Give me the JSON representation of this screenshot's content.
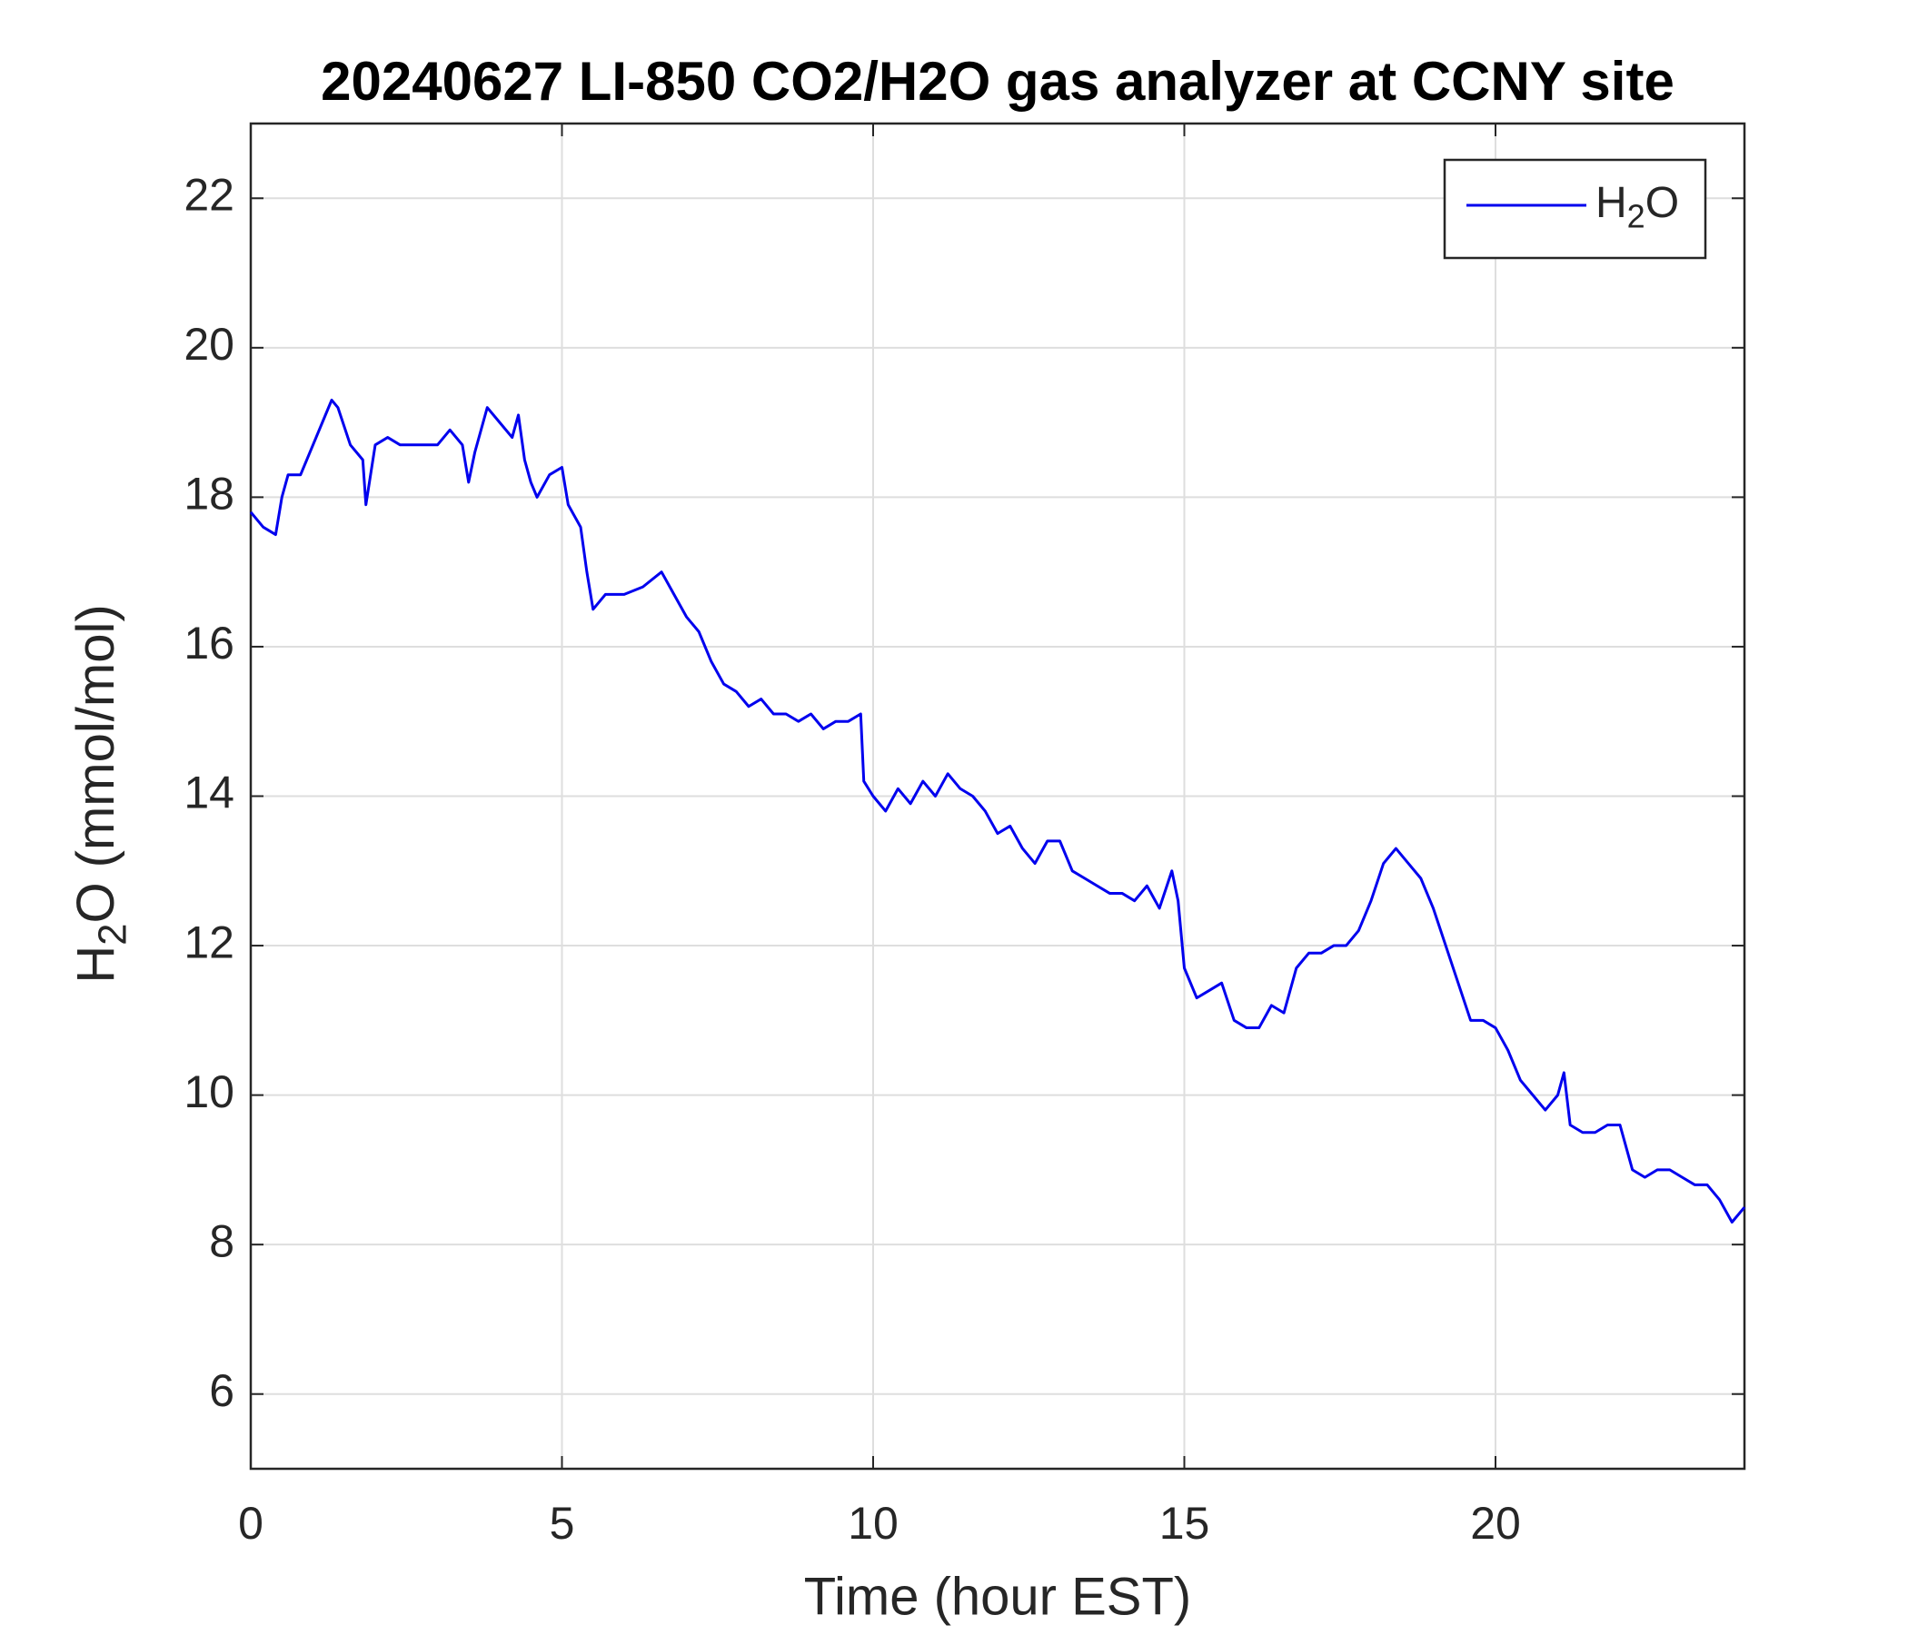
{
  "chart_data": {
    "type": "line",
    "title": "20240627 LI-850 CO2/H2O gas analyzer at CCNY site",
    "xlabel": "Time (hour EST)",
    "ylabel": "H2O (mmol/mol)",
    "x": [
      0,
      0.2,
      0.4,
      0.5,
      0.6,
      0.8,
      1.0,
      1.2,
      1.3,
      1.4,
      1.6,
      1.8,
      1.85,
      2.0,
      2.2,
      2.4,
      2.6,
      2.8,
      3.0,
      3.2,
      3.4,
      3.5,
      3.6,
      3.8,
      4.0,
      4.2,
      4.3,
      4.4,
      4.5,
      4.6,
      4.8,
      5.0,
      5.1,
      5.3,
      5.4,
      5.5,
      5.7,
      6.0,
      6.3,
      6.6,
      6.8,
      7.0,
      7.2,
      7.4,
      7.6,
      7.8,
      8.0,
      8.2,
      8.4,
      8.6,
      8.8,
      9.0,
      9.2,
      9.4,
      9.6,
      9.8,
      9.85,
      10.0,
      10.2,
      10.4,
      10.6,
      10.8,
      11.0,
      11.2,
      11.4,
      11.6,
      11.8,
      12.0,
      12.2,
      12.4,
      12.6,
      12.8,
      13.0,
      13.2,
      13.4,
      13.6,
      13.8,
      14.0,
      14.2,
      14.4,
      14.6,
      14.8,
      14.9,
      15.0,
      15.2,
      15.4,
      15.6,
      15.8,
      16.0,
      16.2,
      16.4,
      16.6,
      16.8,
      17.0,
      17.2,
      17.4,
      17.6,
      17.8,
      18.0,
      18.2,
      18.4,
      18.6,
      18.8,
      19.0,
      19.2,
      19.4,
      19.6,
      19.8,
      20.0,
      20.2,
      20.4,
      20.6,
      20.8,
      21.0,
      21.1,
      21.2,
      21.4,
      21.6,
      21.8,
      22.0,
      22.2,
      22.4,
      22.6,
      22.8,
      23.0,
      23.2,
      23.4,
      23.6,
      23.8,
      24.0
    ],
    "series": [
      {
        "name": "H2O",
        "color": "#0000ee",
        "values": [
          17.8,
          17.6,
          17.5,
          18.0,
          18.3,
          18.3,
          18.7,
          19.1,
          19.3,
          19.2,
          18.7,
          18.5,
          17.9,
          18.7,
          18.8,
          18.7,
          18.7,
          18.7,
          18.7,
          18.9,
          18.7,
          18.2,
          18.6,
          19.2,
          19.0,
          18.8,
          19.1,
          18.5,
          18.2,
          18.0,
          18.3,
          18.4,
          17.9,
          17.6,
          17.0,
          16.5,
          16.7,
          16.7,
          16.8,
          17.0,
          16.7,
          16.4,
          16.2,
          15.8,
          15.5,
          15.4,
          15.2,
          15.3,
          15.1,
          15.1,
          15.0,
          15.1,
          14.9,
          15.0,
          15.0,
          15.1,
          14.2,
          14.0,
          13.8,
          14.1,
          13.9,
          14.2,
          14.0,
          14.3,
          14.1,
          14.0,
          13.8,
          13.5,
          13.6,
          13.3,
          13.1,
          13.4,
          13.4,
          13.0,
          12.9,
          12.8,
          12.7,
          12.7,
          12.6,
          12.8,
          12.5,
          13.0,
          12.6,
          11.7,
          11.3,
          11.4,
          11.5,
          11.0,
          10.9,
          10.9,
          11.2,
          11.1,
          11.7,
          11.9,
          11.9,
          12.0,
          12.0,
          12.2,
          12.6,
          13.1,
          13.3,
          13.1,
          12.9,
          12.5,
          12.0,
          11.5,
          11.0,
          11.0,
          10.9,
          10.6,
          10.2,
          10.0,
          9.8,
          10.0,
          10.3,
          9.6,
          9.5,
          9.5,
          9.6,
          9.6,
          9.0,
          8.9,
          9.0,
          9.0,
          8.9,
          8.8,
          8.8,
          8.6,
          8.3,
          8.5
        ]
      }
    ],
    "xlim": [
      0,
      24
    ],
    "xticks": [
      0,
      5,
      10,
      15,
      20
    ],
    "ylim": [
      5,
      23
    ],
    "yticks": [
      6,
      8,
      10,
      12,
      14,
      16,
      18,
      20,
      22
    ],
    "grid": true,
    "legend": "upper-right"
  }
}
